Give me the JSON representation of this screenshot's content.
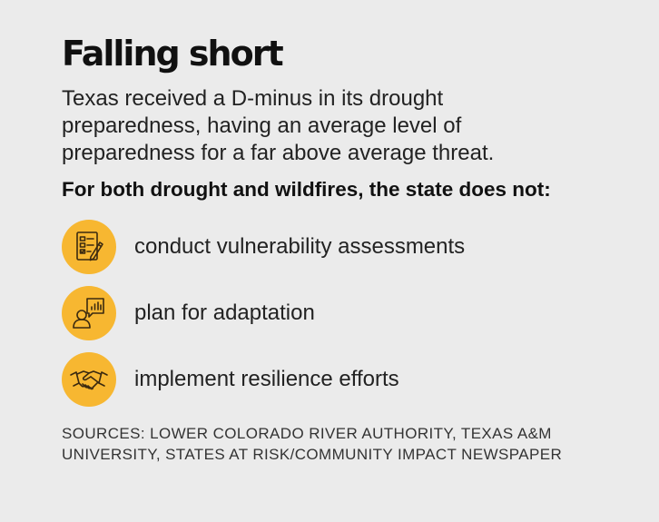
{
  "title": "Falling short",
  "description": "Texas received a D-minus in its drought preparedness, having an average level of preparedness for a far above average threat.",
  "lead": "For both drought and wildfires, the state does not:",
  "items": [
    {
      "icon": "checklist-pencil-icon",
      "label": "conduct vulnerability assessments"
    },
    {
      "icon": "presenter-chart-icon",
      "label": "plan for adaptation"
    },
    {
      "icon": "handshake-icon",
      "label": "implement resilience efforts"
    }
  ],
  "sources": "SOURCES: LOWER COLORADO RIVER AUTHORITY, TEXAS A&M UNIVERSITY, STATES AT RISK/COMMUNITY IMPACT NEWSPAPER",
  "colors": {
    "background": "#ebebeb",
    "accent": "#f7b731",
    "text": "#1a1a1a"
  }
}
